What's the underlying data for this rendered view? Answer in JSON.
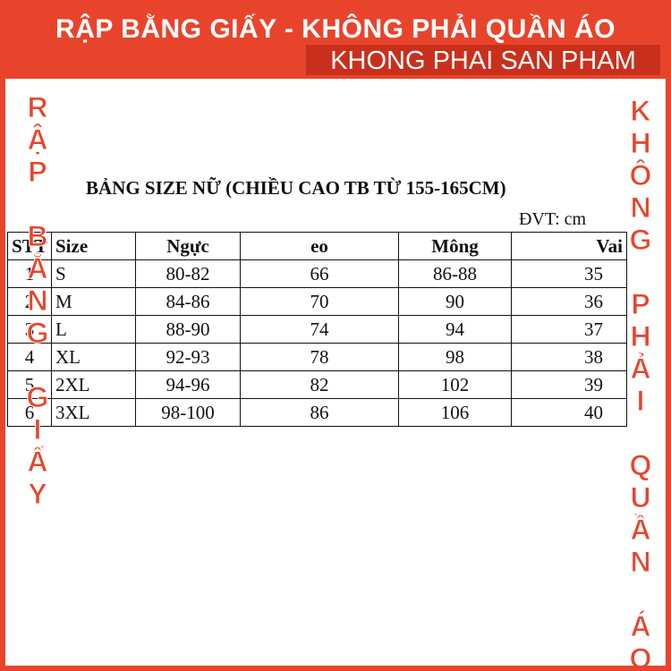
{
  "banner": {
    "line1": "RẬP BẰNG GIẤY - KHÔNG PHẢI QUẦN ÁO",
    "line2": "KHONG PHAI SAN PHAM"
  },
  "side": {
    "left": "RẬP BẰNG GIẤY",
    "right": "KHÔNG PHẢI QUẦN ÁO"
  },
  "table": {
    "title": "BẢNG SIZE NỮ (CHIỀU CAO TB TỪ 155-165CM)",
    "unit": "ĐVT: cm",
    "header": [
      "STT",
      "Size",
      "Ngực",
      "eo",
      "Mông",
      "Vai"
    ],
    "rows": [
      [
        "1",
        "S",
        "80-82",
        "66",
        "86-88",
        "35"
      ],
      [
        "2",
        "M",
        "84-86",
        "70",
        "90",
        "36"
      ],
      [
        "3",
        "L",
        "88-90",
        "74",
        "94",
        "37"
      ],
      [
        "4",
        "XL",
        "92-93",
        "78",
        "98",
        "38"
      ],
      [
        "5",
        "2XL",
        "94-96",
        "82",
        "102",
        "39"
      ],
      [
        "6",
        "3XL",
        "98-100",
        "86",
        "106",
        "40"
      ]
    ]
  }
}
